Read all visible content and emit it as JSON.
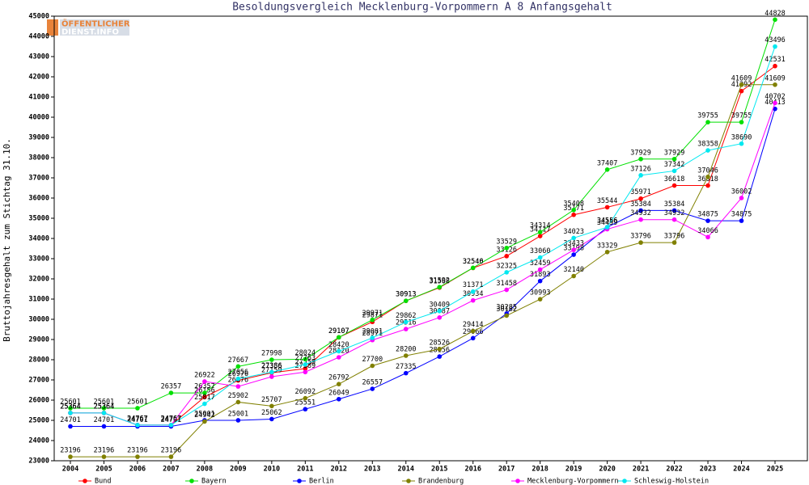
{
  "logo": {
    "lines": [
      "ÖFFENTLICHER",
      "DIENST.INFO"
    ]
  },
  "chart_data": {
    "type": "line",
    "title": "Besoldungsvergleich Mecklenburg-Vorpommern A 8 Anfangsgehalt",
    "y_label": "Bruttojahresgehalt zum Stichtag 31.10.",
    "categories": [
      "2004",
      "2005",
      "2006",
      "2007",
      "2008",
      "2009",
      "2010",
      "2011",
      "2012",
      "2013",
      "2014",
      "2015",
      "2016",
      "2017",
      "2018",
      "2019",
      "2020",
      "2021",
      "2022",
      "2023",
      "2024",
      "2025"
    ],
    "ylim": [
      23000,
      45000
    ],
    "yticks": [
      23000,
      24000,
      25000,
      26000,
      27000,
      28000,
      29000,
      30000,
      31000,
      32000,
      33000,
      34000,
      35000,
      36000,
      37000,
      38000,
      39000,
      40000,
      41000,
      42000,
      43000,
      44000,
      45000
    ],
    "series": [
      {
        "name": "Bund",
        "color": "#ff0000",
        "values": [
          25364,
          25364,
          24767,
          24767,
          26156,
          26976,
          27356,
          27559,
          29107,
          29871,
          30913,
          31568,
          32540,
          33126,
          34117,
          35171,
          35544,
          35971,
          36618,
          36618,
          41292,
          42531
        ]
      },
      {
        "name": "Bayern",
        "color": "#00e000",
        "values": [
          25601,
          25601,
          25601,
          26357,
          26357,
          27667,
          27998,
          28024,
          29107,
          29971,
          30913,
          31592,
          32546,
          33529,
          34314,
          35408,
          37407,
          37929,
          37929,
          39755,
          39755,
          44828
        ]
      },
      {
        "name": "Berlin",
        "color": "#0000ff",
        "values": [
          24701,
          24701,
          24701,
          24701,
          25001,
          25001,
          25062,
          25551,
          26049,
          26557,
          27335,
          28156,
          29066,
          30285,
          31893,
          33198,
          34556,
          35384,
          35384,
          34875,
          34875,
          40413
        ]
      },
      {
        "name": "Brandenburg",
        "color": "#808000",
        "values": [
          23196,
          23196,
          23196,
          23196,
          24942,
          25902,
          25707,
          26092,
          26792,
          27700,
          28200,
          28526,
          29414,
          30182,
          30993,
          32140,
          33329,
          33796,
          33796,
          37046,
          41609,
          41609
        ]
      },
      {
        "name": "Mecklenburg-Vorpommern",
        "color": "#ff00ff",
        "values": [
          25364,
          25364,
          24767,
          24767,
          26922,
          26676,
          27159,
          27389,
          28120,
          28971,
          29516,
          30087,
          30934,
          31458,
          32459,
          33433,
          34459,
          34932,
          34932,
          34066,
          36002,
          40702
        ]
      },
      {
        "name": "Schleswig-Holstein",
        "color": "#00e8f0",
        "values": [
          25364,
          25364,
          24767,
          24767,
          25817,
          27056,
          27386,
          27763,
          28420,
          29081,
          29862,
          30409,
          31371,
          32325,
          33060,
          34023,
          34556,
          37126,
          37342,
          38358,
          38690,
          43496
        ]
      }
    ],
    "grid": false
  }
}
